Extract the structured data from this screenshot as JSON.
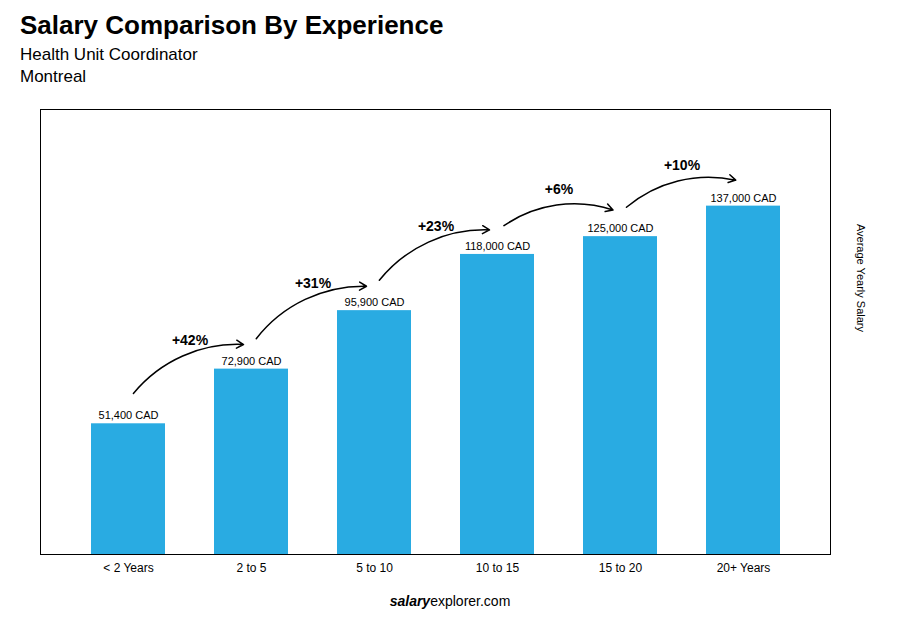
{
  "chart_data": {
    "type": "bar",
    "title": "Salary Comparison By Experience",
    "subtitle": [
      "Health Unit Coordinator",
      "Montreal"
    ],
    "caption": [
      "salary",
      "explorer.com"
    ],
    "categories": [
      "< 2 Years",
      "2 to 5",
      "5 to 10",
      "10 to 15",
      "15 to 20",
      "20+ Years"
    ],
    "values": [
      51400,
      72900,
      95900,
      118000,
      125000,
      137000
    ],
    "value_labels": [
      "51,400 CAD",
      "72,900 CAD",
      "95,900 CAD",
      "118,000 CAD",
      "125,000 CAD",
      "137,000 CAD"
    ],
    "data_labels": true,
    "color": "#29abe2",
    "ylabel": "Average Yearly Salary",
    "ylim": [
      0,
      175000
    ],
    "yticks": [],
    "tick_labels": "x",
    "grid": false,
    "annotations": [
      {
        "text": "+42%",
        "from": "< 2 Years",
        "to": "2 to 5"
      },
      {
        "text": "+31%",
        "from": "2 to 5",
        "to": "5 to 10"
      },
      {
        "text": "+23%",
        "from": "5 to 10",
        "to": "10 to 15"
      },
      {
        "text": "+6%",
        "from": "10 to 15",
        "to": "15 to 20"
      },
      {
        "text": "+10%",
        "from": "15 to 20",
        "to": "20+ Years"
      }
    ]
  }
}
